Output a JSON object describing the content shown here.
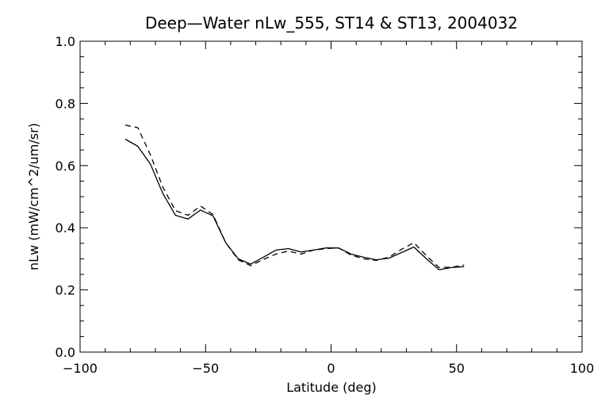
{
  "chart_data": {
    "type": "line",
    "title": "Deep—Water nLw_555, ST14 & ST13, 2004032",
    "xlabel": "Latitude (deg)",
    "ylabel": "nLw (mW/cm^2/um/sr)",
    "xlim": [
      -100,
      100
    ],
    "ylim": [
      0.0,
      1.0
    ],
    "x_ticks": [
      -100,
      -50,
      0,
      50,
      100
    ],
    "x_tick_labels": [
      "−100",
      "−50",
      "0",
      "50",
      "100"
    ],
    "y_ticks": [
      0.0,
      0.2,
      0.4,
      0.6,
      0.8,
      1.0
    ],
    "y_tick_labels": [
      "0.0",
      "0.2",
      "0.4",
      "0.6",
      "0.8",
      "1.0"
    ],
    "grid": false,
    "legend": "none",
    "series": [
      {
        "style": "solid",
        "color": "#000000",
        "points": [
          [
            -82,
            0.685
          ],
          [
            -77,
            0.662
          ],
          [
            -72,
            0.605
          ],
          [
            -67,
            0.51
          ],
          [
            -62,
            0.44
          ],
          [
            -57,
            0.428
          ],
          [
            -52,
            0.457
          ],
          [
            -47,
            0.438
          ],
          [
            -42,
            0.352
          ],
          [
            -37,
            0.3
          ],
          [
            -32,
            0.283
          ],
          [
            -27,
            0.305
          ],
          [
            -22,
            0.328
          ],
          [
            -17,
            0.333
          ],
          [
            -12,
            0.322
          ],
          [
            -7,
            0.328
          ],
          [
            -2,
            0.335
          ],
          [
            3,
            0.335
          ],
          [
            8,
            0.315
          ],
          [
            13,
            0.305
          ],
          [
            18,
            0.297
          ],
          [
            23,
            0.302
          ],
          [
            28,
            0.32
          ],
          [
            33,
            0.338
          ],
          [
            38,
            0.3
          ],
          [
            43,
            0.265
          ],
          [
            48,
            0.272
          ],
          [
            53,
            0.275
          ]
        ]
      },
      {
        "style": "dashed",
        "color": "#000000",
        "points": [
          [
            -82,
            0.73
          ],
          [
            -77,
            0.722
          ],
          [
            -72,
            0.635
          ],
          [
            -67,
            0.53
          ],
          [
            -62,
            0.455
          ],
          [
            -57,
            0.44
          ],
          [
            -52,
            0.47
          ],
          [
            -47,
            0.442
          ],
          [
            -42,
            0.352
          ],
          [
            -37,
            0.297
          ],
          [
            -32,
            0.278
          ],
          [
            -27,
            0.298
          ],
          [
            -22,
            0.315
          ],
          [
            -17,
            0.325
          ],
          [
            -12,
            0.315
          ],
          [
            -7,
            0.328
          ],
          [
            -2,
            0.333
          ],
          [
            3,
            0.335
          ],
          [
            8,
            0.312
          ],
          [
            13,
            0.3
          ],
          [
            18,
            0.295
          ],
          [
            23,
            0.305
          ],
          [
            28,
            0.33
          ],
          [
            33,
            0.352
          ],
          [
            38,
            0.31
          ],
          [
            43,
            0.272
          ],
          [
            48,
            0.273
          ],
          [
            53,
            0.28
          ]
        ]
      }
    ]
  }
}
